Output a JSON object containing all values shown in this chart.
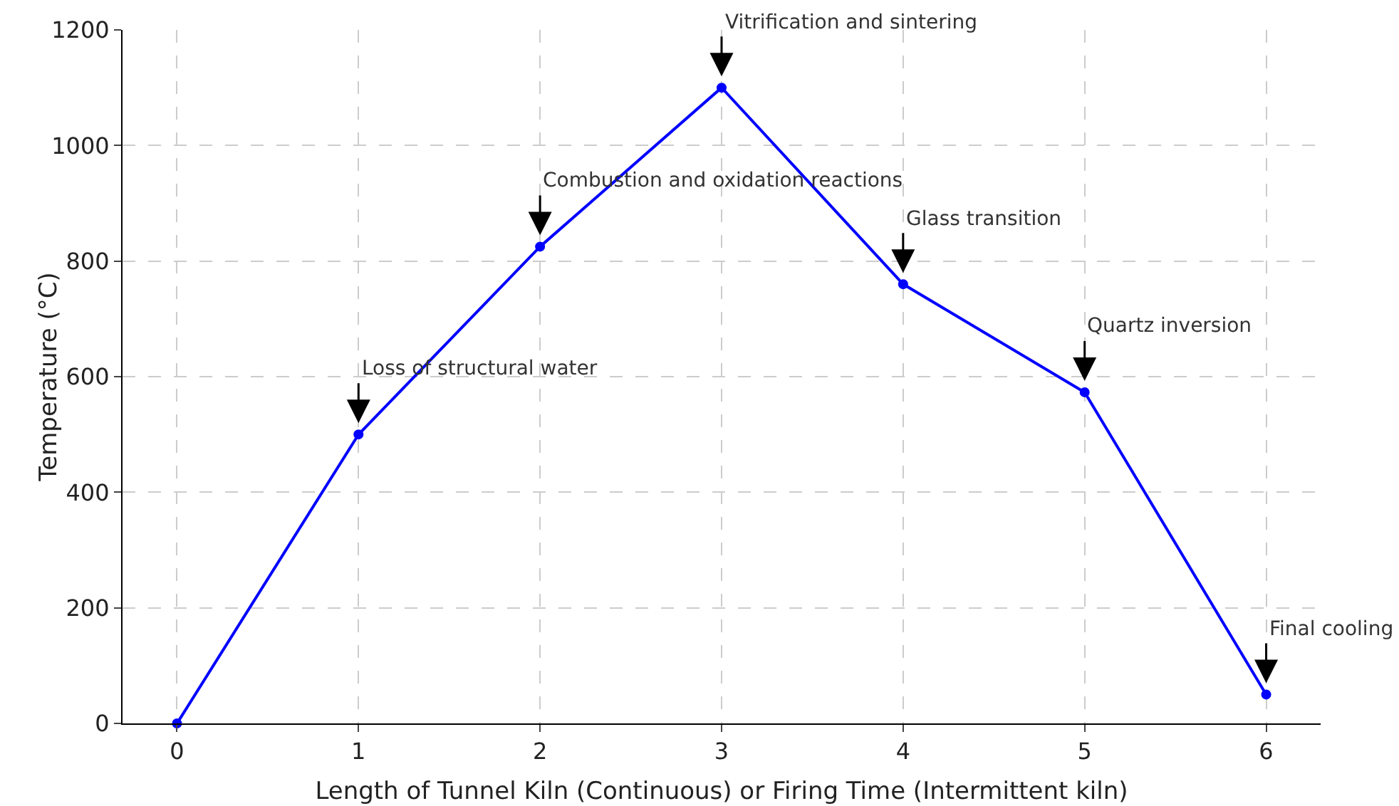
{
  "chart_data": {
    "type": "line",
    "xlabel": "Length of Tunnel Kiln (Continuous) or Firing Time (Intermittent kiln)",
    "ylabel": "Temperature (°C)",
    "x": [
      0,
      1,
      2,
      3,
      4,
      5,
      6
    ],
    "series": [
      {
        "color": "#0000ff",
        "values": [
          0,
          500,
          825,
          1100,
          760,
          573,
          50
        ]
      }
    ],
    "xlim": [
      -0.3,
      6.3
    ],
    "xticks": [
      0,
      1,
      2,
      3,
      4,
      5,
      6
    ],
    "ylim": [
      0,
      1200
    ],
    "yticks": [
      0,
      200,
      400,
      600,
      800,
      1000,
      1200
    ],
    "grid": true,
    "marker": "circle",
    "line_style": "solid",
    "annotations": [
      {
        "text": "Loss of structural water",
        "x": 1,
        "y": 500
      },
      {
        "text": "Combustion and oxidation reactions",
        "x": 2,
        "y": 825
      },
      {
        "text": "Vitrification and sintering",
        "x": 3,
        "y": 1100
      },
      {
        "text": "Glass transition",
        "x": 4,
        "y": 760
      },
      {
        "text": "Quartz inversion",
        "x": 5,
        "y": 573
      },
      {
        "text": "Final cooling",
        "x": 6,
        "y": 50
      }
    ]
  }
}
